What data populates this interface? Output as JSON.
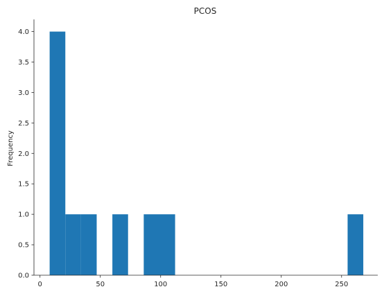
{
  "chart_data": {
    "type": "bar",
    "title": "PCOS",
    "xlabel": "",
    "ylabel": "Frequency",
    "xlim": [
      -5,
      280
    ],
    "ylim": [
      0,
      4.2
    ],
    "xticks": [
      0,
      50,
      100,
      150,
      200,
      250
    ],
    "yticks": [
      0.0,
      0.5,
      1.0,
      1.5,
      2.0,
      2.5,
      3.0,
      3.5,
      4.0
    ],
    "ytick_labels": [
      "0.0",
      "0.5",
      "1.0",
      "1.5",
      "2.0",
      "2.5",
      "3.0",
      "3.5",
      "4.0"
    ],
    "bin_edges": [
      8,
      21,
      34,
      47,
      60,
      73,
      86,
      99,
      112,
      125,
      138,
      151,
      164,
      177,
      190,
      203,
      216,
      229,
      242,
      255,
      268
    ],
    "counts": [
      4,
      1,
      1,
      0,
      1,
      0,
      1,
      1,
      0,
      0,
      0,
      0,
      0,
      0,
      0,
      0,
      0,
      0,
      0,
      1
    ],
    "bar_color": "#1f77b4",
    "grid": false
  }
}
